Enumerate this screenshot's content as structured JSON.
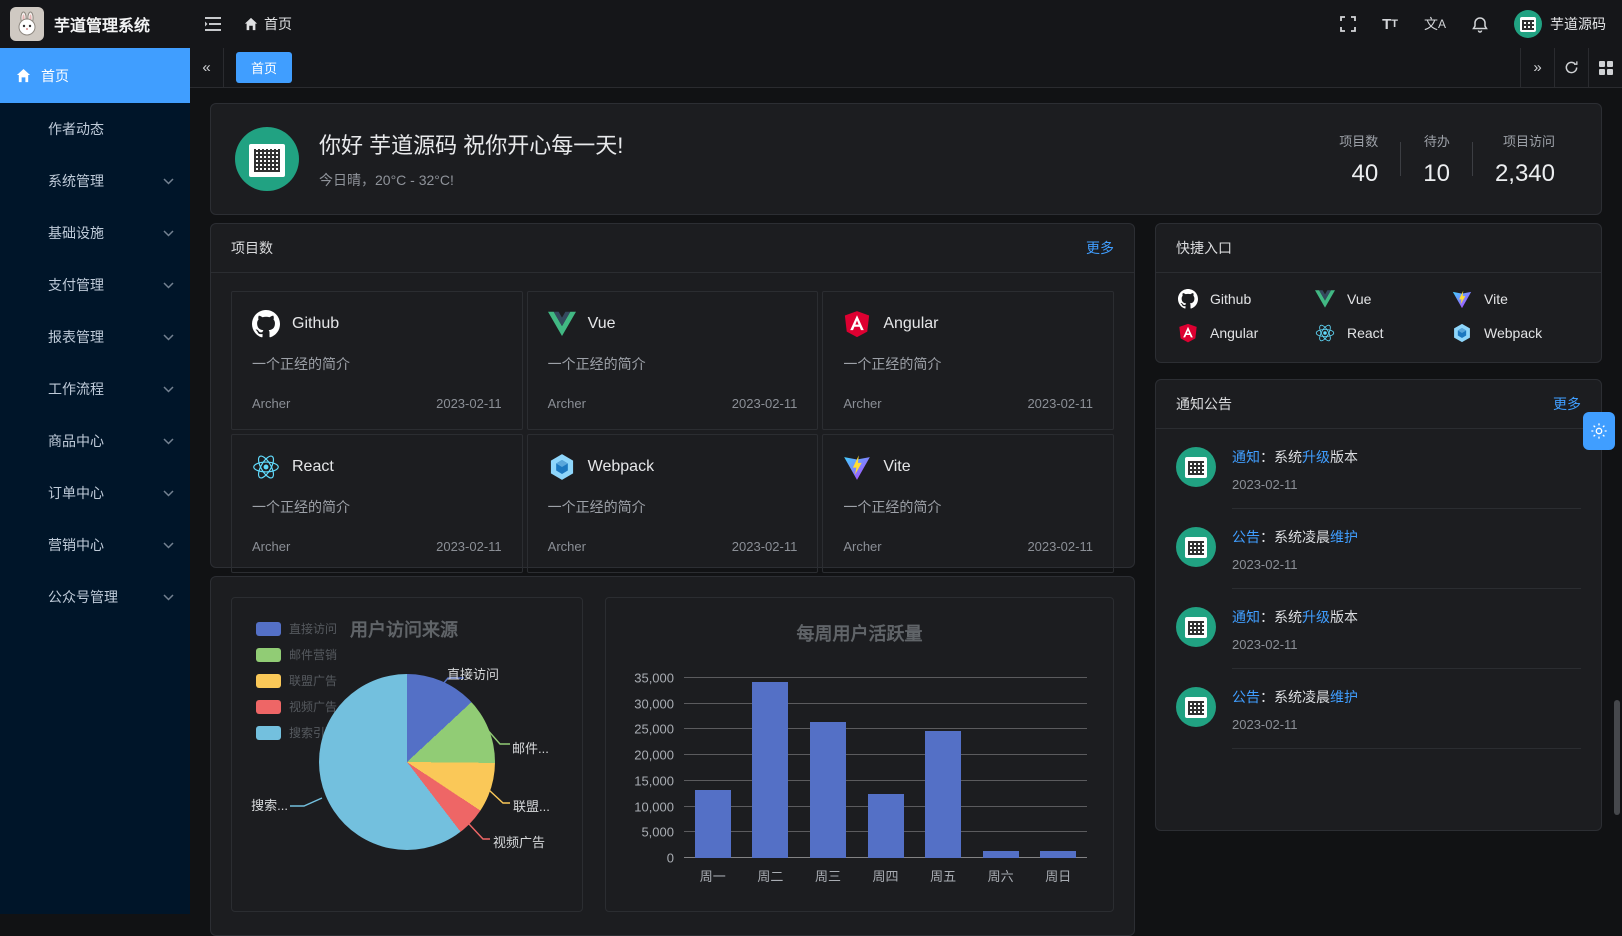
{
  "accent": "#409eff",
  "topbar": {
    "app_title": "芋道管理系统",
    "breadcrumb_home": "首页",
    "username": "芋道源码"
  },
  "tabbar": {
    "active_tab": "首页"
  },
  "sidebar": {
    "items": [
      {
        "label": "首页",
        "active": true,
        "home": true
      },
      {
        "label": "作者动态",
        "sub": false
      },
      {
        "label": "系统管理",
        "sub": true
      },
      {
        "label": "基础设施",
        "sub": true
      },
      {
        "label": "支付管理",
        "sub": true
      },
      {
        "label": "报表管理",
        "sub": true
      },
      {
        "label": "工作流程",
        "sub": true
      },
      {
        "label": "商品中心",
        "sub": true
      },
      {
        "label": "订单中心",
        "sub": true
      },
      {
        "label": "营销中心",
        "sub": true
      },
      {
        "label": "公众号管理",
        "sub": true
      }
    ]
  },
  "welcome": {
    "greeting": "你好 芋道源码 祝你开心每一天!",
    "weather": "今日晴，20°C - 32°C!",
    "stats": [
      {
        "label": "项目数",
        "value": "40"
      },
      {
        "label": "待办",
        "value": "10"
      },
      {
        "label": "项目访问",
        "value": "2,340"
      }
    ]
  },
  "projects": {
    "title": "项目数",
    "more": "更多",
    "items": [
      {
        "name": "Github",
        "icon": "github",
        "desc": "一个正经的简介",
        "author": "Archer",
        "date": "2023-02-11"
      },
      {
        "name": "Vue",
        "icon": "vue",
        "desc": "一个正经的简介",
        "author": "Archer",
        "date": "2023-02-11"
      },
      {
        "name": "Angular",
        "icon": "angular",
        "desc": "一个正经的简介",
        "author": "Archer",
        "date": "2023-02-11"
      },
      {
        "name": "React",
        "icon": "react",
        "desc": "一个正经的简介",
        "author": "Archer",
        "date": "2023-02-11"
      },
      {
        "name": "Webpack",
        "icon": "webpack",
        "desc": "一个正经的简介",
        "author": "Archer",
        "date": "2023-02-11"
      },
      {
        "name": "Vite",
        "icon": "vite",
        "desc": "一个正经的简介",
        "author": "Archer",
        "date": "2023-02-11"
      }
    ]
  },
  "shortcuts": {
    "title": "快捷入口",
    "items": [
      {
        "name": "Github",
        "icon": "github"
      },
      {
        "name": "Vue",
        "icon": "vue"
      },
      {
        "name": "Vite",
        "icon": "vite"
      },
      {
        "name": "Angular",
        "icon": "angular"
      },
      {
        "name": "React",
        "icon": "react"
      },
      {
        "name": "Webpack",
        "icon": "webpack"
      }
    ]
  },
  "notices": {
    "title": "通知公告",
    "more": "更多",
    "items": [
      {
        "segments": [
          {
            "t": "通知",
            "hl": true
          },
          {
            "t": "：系统",
            "hl": false
          },
          {
            "t": "升级",
            "hl": true
          },
          {
            "t": "版本",
            "hl": false
          }
        ],
        "date": "2023-02-11"
      },
      {
        "segments": [
          {
            "t": "公告",
            "hl": true
          },
          {
            "t": "：系统凌晨",
            "hl": false
          },
          {
            "t": "维护",
            "hl": true
          }
        ],
        "date": "2023-02-11"
      },
      {
        "segments": [
          {
            "t": "通知",
            "hl": true
          },
          {
            "t": "：系统",
            "hl": false
          },
          {
            "t": "升级",
            "hl": true
          },
          {
            "t": "版本",
            "hl": false
          }
        ],
        "date": "2023-02-11"
      },
      {
        "segments": [
          {
            "t": "公告",
            "hl": true
          },
          {
            "t": "：系统凌晨",
            "hl": false
          },
          {
            "t": "维护",
            "hl": true
          }
        ],
        "date": "2023-02-11"
      }
    ]
  },
  "chart_data": [
    {
      "type": "pie",
      "title": "用户访问来源",
      "legend": [
        "直接访问",
        "邮件营销",
        "联盟广告",
        "视频广告",
        "搜索引擎"
      ],
      "values": [
        335,
        310,
        234,
        135,
        1548
      ],
      "colors": [
        "#5470c6",
        "#91cc75",
        "#fac858",
        "#ee6666",
        "#73c0de"
      ],
      "callout_labels": [
        "直接访问",
        "邮件...",
        "联盟...",
        "视频广告",
        "搜索..."
      ],
      "legend_position": "top-left"
    },
    {
      "type": "bar",
      "title": "每周用户活跃量",
      "categories": [
        "周一",
        "周二",
        "周三",
        "周四",
        "周五",
        "周六",
        "周日"
      ],
      "values": [
        13300,
        34300,
        26400,
        12400,
        24700,
        1400,
        1400
      ],
      "ylim": [
        0,
        35000
      ],
      "ytick_step": 5000,
      "bar_color": "#5470c6",
      "grid": true
    }
  ]
}
